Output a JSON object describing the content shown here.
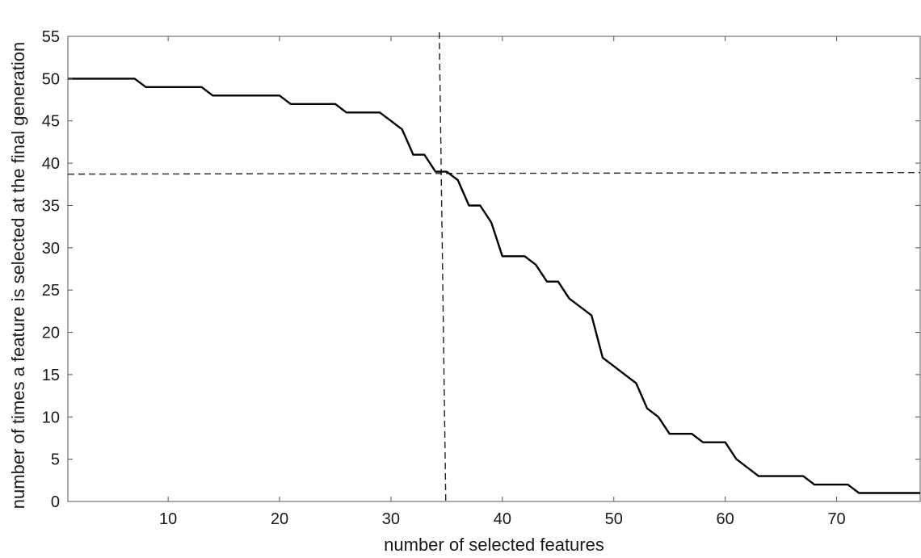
{
  "chart_data": {
    "type": "line",
    "title": "",
    "xlabel": "number of selected features",
    "ylabel": "number of times a feature is selected at the final generation",
    "xlim": [
      1,
      77.5
    ],
    "ylim": [
      0,
      55
    ],
    "xticks": [
      10,
      20,
      30,
      40,
      50,
      60,
      70
    ],
    "yticks": [
      0,
      5,
      10,
      15,
      20,
      25,
      30,
      35,
      40,
      45,
      50,
      55
    ],
    "grid": false,
    "series": [
      {
        "color": "#000000",
        "x": [
          1,
          2,
          3,
          4,
          5,
          6,
          7,
          8,
          9,
          10,
          11,
          12,
          13,
          14,
          15,
          16,
          17,
          18,
          19,
          20,
          21,
          22,
          23,
          24,
          25,
          26,
          27,
          28,
          29,
          30,
          31,
          32,
          33,
          34,
          35,
          36,
          37,
          38,
          39,
          40,
          41,
          42,
          43,
          44,
          45,
          46,
          47,
          48,
          49,
          50,
          51,
          52,
          53,
          54,
          55,
          56,
          57,
          58,
          59,
          60,
          61,
          62,
          63,
          64,
          65,
          66,
          67,
          68,
          69,
          70,
          71,
          72,
          73,
          74,
          75,
          76,
          77,
          78
        ],
        "y": [
          50,
          50,
          50,
          50,
          50,
          50,
          50,
          49,
          49,
          49,
          49,
          49,
          49,
          48,
          48,
          48,
          48,
          48,
          48,
          48,
          47,
          47,
          47,
          47,
          47,
          46,
          46,
          46,
          46,
          45,
          44,
          41,
          41,
          39,
          39,
          38,
          35,
          35,
          33,
          29,
          29,
          29,
          28,
          26,
          26,
          24,
          23,
          22,
          17,
          16,
          15,
          14,
          11,
          10,
          8,
          8,
          8,
          7,
          7,
          7,
          5,
          4,
          3,
          3,
          3,
          3,
          3,
          2,
          2,
          2,
          2,
          1,
          1,
          1,
          1,
          1,
          1,
          1
        ]
      }
    ],
    "reference_lines": [
      {
        "orientation": "horizontal",
        "style": "dashed",
        "y": 38.8
      },
      {
        "orientation": "vertical",
        "style": "dashed",
        "x": 34.7
      }
    ]
  }
}
